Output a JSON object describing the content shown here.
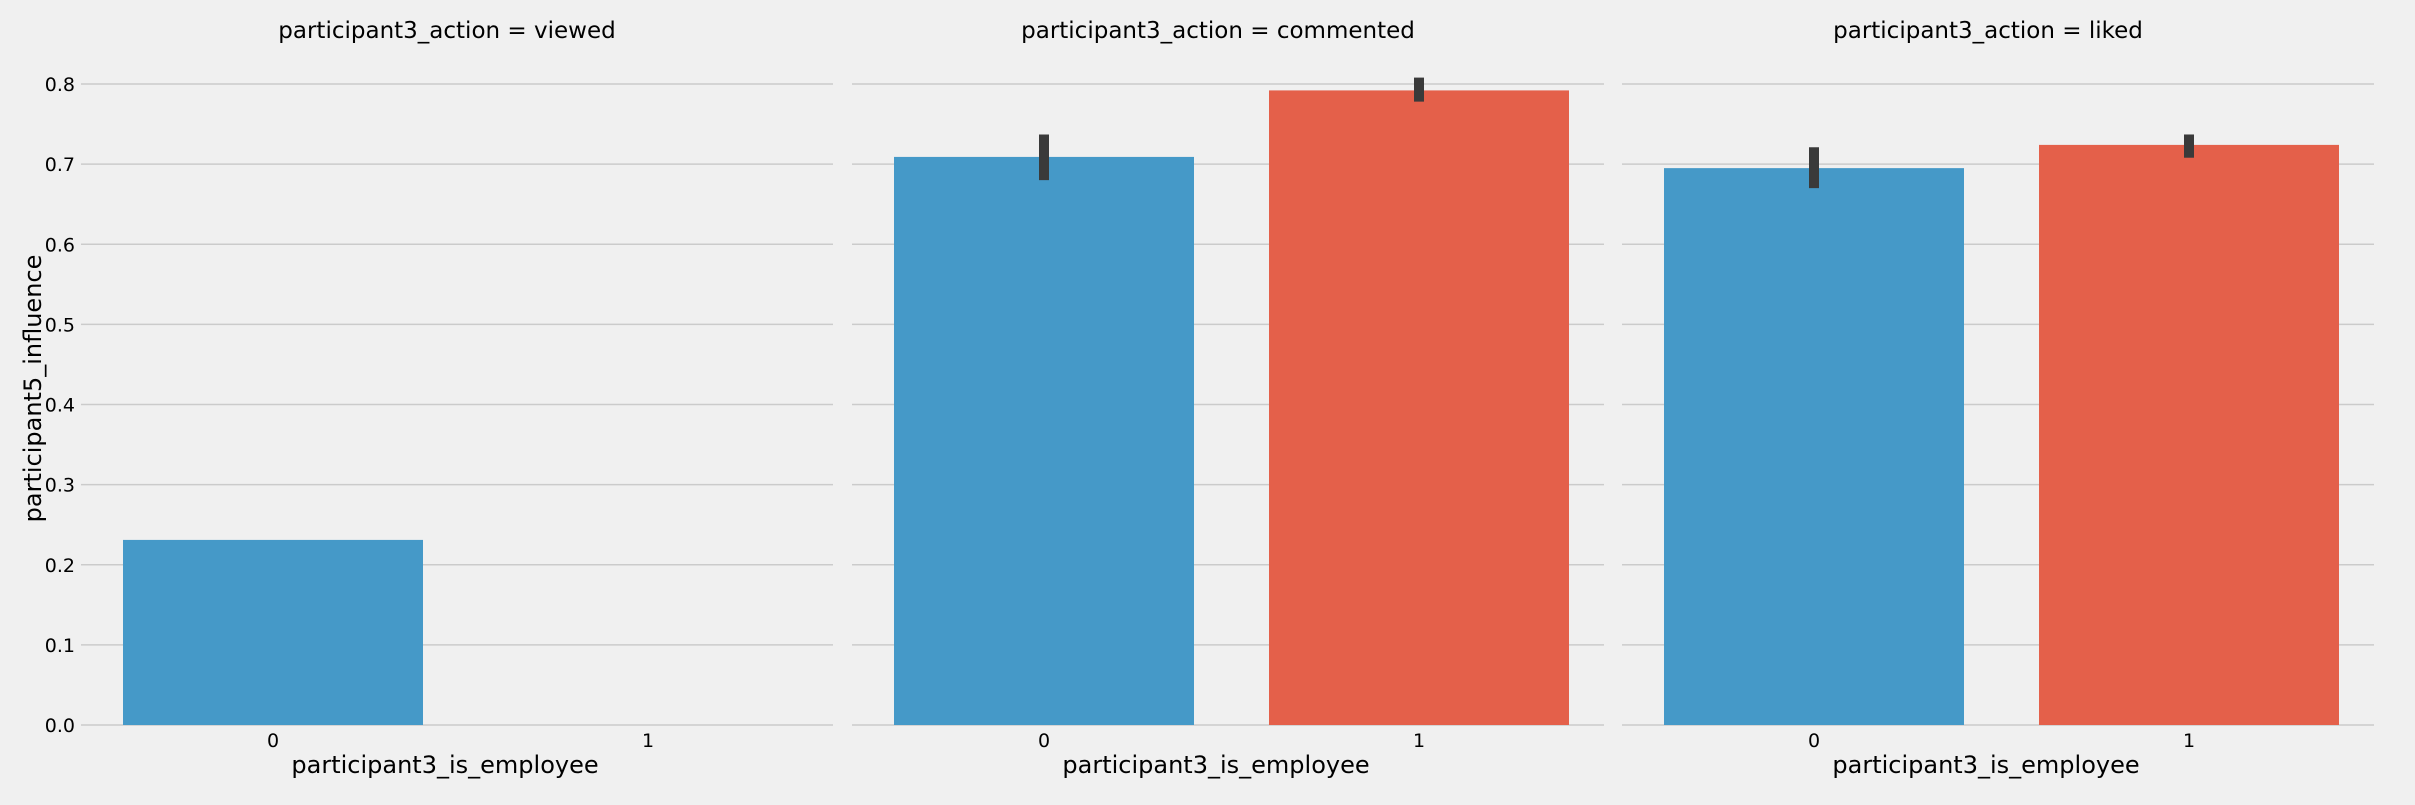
{
  "chart_data": {
    "type": "bar",
    "layout": "facet-grid",
    "ylabel": "participant5_influence",
    "xlabel": "participant3_is_employee",
    "ylim": [
      0,
      0.8
    ],
    "yticks": [
      "0.0",
      "0.1",
      "0.2",
      "0.3",
      "0.4",
      "0.5",
      "0.6",
      "0.7",
      "0.8"
    ],
    "categories": [
      "0",
      "1"
    ],
    "category_colors": [
      "#4599c8",
      "#e4604a"
    ],
    "error_bar_color": "#3a3a3a",
    "grid": true,
    "panels": [
      {
        "title": "participant3_action = viewed",
        "values": [
          0.231,
          null
        ],
        "ci": [
          null,
          null
        ]
      },
      {
        "title": "participant3_action = commented",
        "values": [
          0.709,
          0.792
        ],
        "ci": [
          [
            0.68,
            0.737
          ],
          [
            0.778,
            0.808
          ]
        ]
      },
      {
        "title": "participant3_action = liked",
        "values": [
          0.695,
          0.724
        ],
        "ci": [
          [
            0.67,
            0.721
          ],
          [
            0.708,
            0.737
          ]
        ]
      }
    ]
  }
}
